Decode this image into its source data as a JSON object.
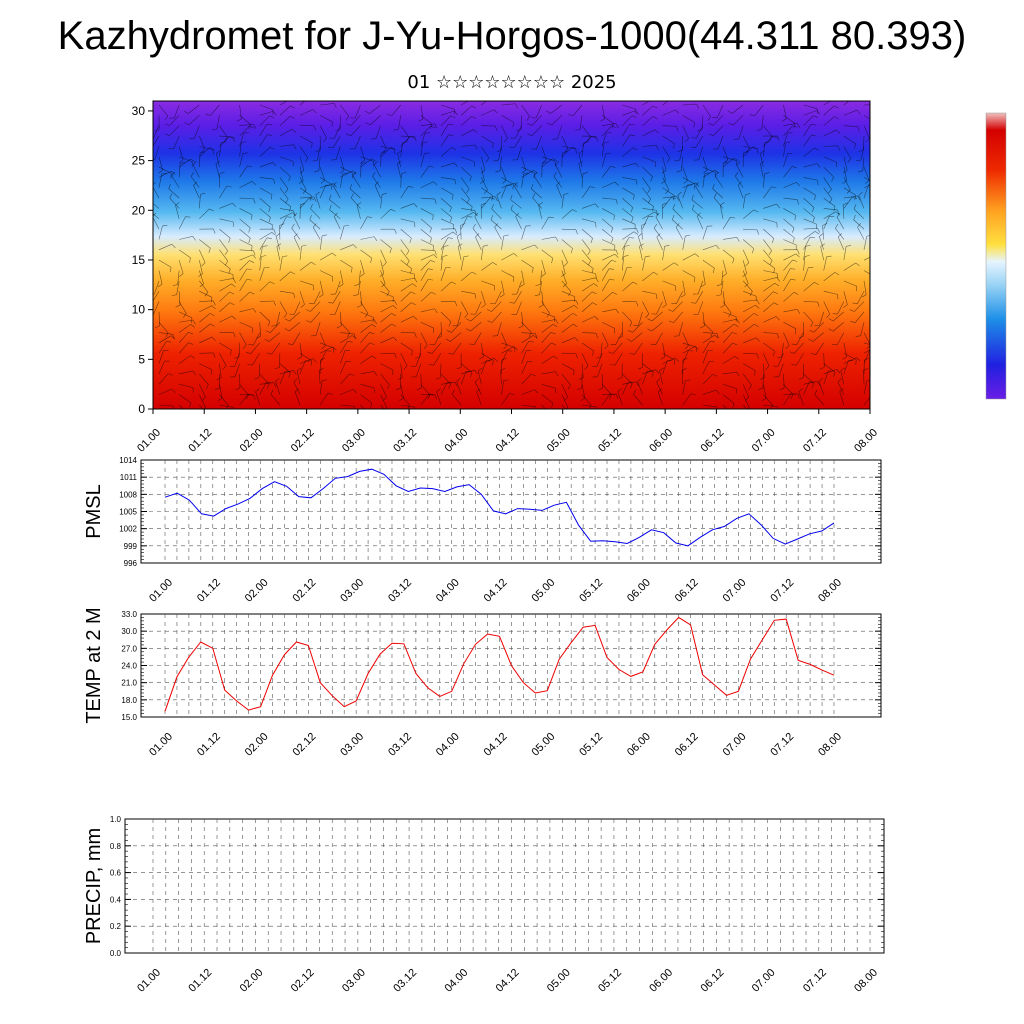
{
  "title": "Kazhydromet for J-Yu-Horgos-1000(44.311 80.393)",
  "subtitle": "01 ☆☆☆☆☆☆☆☆ 2025",
  "time_ticks": [
    "01.00",
    "01.12",
    "02.00",
    "02.12",
    "03.00",
    "03.12",
    "04.00",
    "04.12",
    "05.00",
    "05.12",
    "06.00",
    "06.12",
    "07.00",
    "07.12",
    "08.00"
  ],
  "colors": {
    "pmsl_line": "#0000ee",
    "temp_line": "#ee0000",
    "precip_line": "#000000"
  },
  "chart_data": [
    {
      "type": "heatmap",
      "title": "",
      "xlabel": "",
      "ylabel": "",
      "ylim": [
        0,
        31
      ],
      "yticks": [
        0,
        5,
        10,
        15,
        20,
        25,
        30
      ],
      "colorbar": "vertical, right side, purple-blue-cyan-yellow-red ramp",
      "overlay": "wind barbs"
    },
    {
      "type": "line",
      "ylabel": "PMSL",
      "ylim": [
        996,
        1014
      ],
      "yticks": [
        "996",
        "999",
        "1002",
        "1005",
        "1008",
        "1011",
        "1014"
      ],
      "series": [
        {
          "values": [
            1007.5,
            1008.2,
            1007,
            1004.6,
            1004.2,
            1005.5,
            1006.3,
            1007.3,
            1009,
            1010.2,
            1009.4,
            1007.6,
            1007.4,
            1009,
            1010.8,
            1011.1,
            1012,
            1012.4,
            1011.5,
            1009.5,
            1008.5,
            1009.1,
            1009,
            1008.5,
            1009.3,
            1009.7,
            1008,
            1005.1,
            1004.6,
            1005.5,
            1005.4,
            1005.2,
            1006.1,
            1006.6,
            1002.6,
            999.8,
            999.9,
            999.7,
            999.4,
            1000.5,
            1001.8,
            1001.3,
            999.5,
            999,
            1000.5,
            1001.8,
            1002.4,
            1003.8,
            1004.6,
            1002.7,
            1000.3,
            999.3,
            1000.2,
            1001.1,
            1001.6,
            1003
          ]
        }
      ]
    },
    {
      "type": "line",
      "ylabel": "TEMP at 2 M",
      "ylim": [
        15,
        33
      ],
      "yticks": [
        "15.0",
        "18.0",
        "21.0",
        "24.0",
        "27.0",
        "30.0",
        "33.0"
      ],
      "series": [
        {
          "values": [
            16,
            22,
            25.5,
            28.1,
            27,
            19.7,
            17.8,
            16.2,
            16.8,
            22.3,
            25.9,
            28.1,
            27.5,
            21,
            18.7,
            16.8,
            17.8,
            22.6,
            26,
            27.9,
            27.8,
            22.6,
            20.1,
            18.6,
            19.5,
            24.3,
            27.7,
            29.5,
            29.1,
            24,
            21,
            19.2,
            19.6,
            25.1,
            28,
            30.7,
            31,
            25.4,
            23.3,
            22.1,
            22.9,
            27.7,
            30.2,
            32.4,
            31.1,
            22.4,
            20.6,
            18.8,
            19.5,
            25.1,
            28.5,
            31.9,
            32.1,
            24.9,
            24.2,
            23.2,
            22.3
          ]
        }
      ]
    },
    {
      "type": "line",
      "ylabel": "PRECIP, mm",
      "ylim": [
        0,
        1
      ],
      "yticks": [
        "0.0",
        "0.2",
        "0.4",
        "0.6",
        "0.8",
        "1.0"
      ],
      "series": [
        {
          "values": [
            0,
            0
          ]
        }
      ]
    }
  ]
}
